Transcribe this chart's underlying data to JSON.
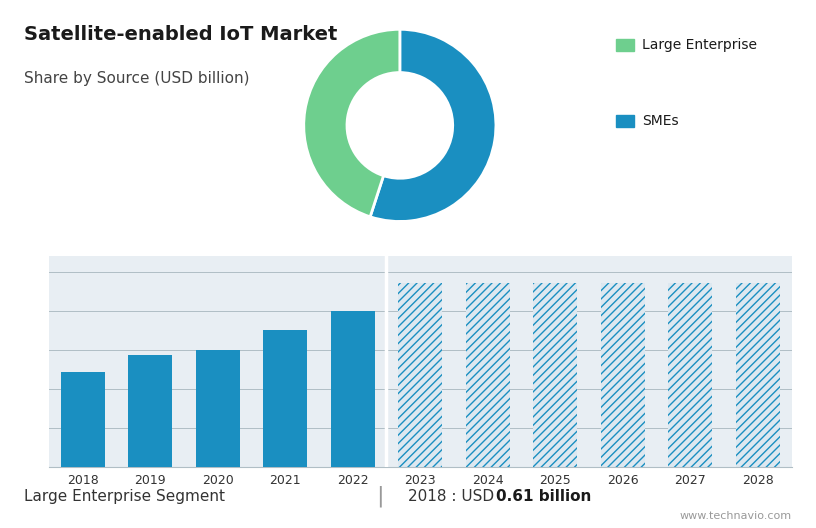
{
  "title": "Satellite-enabled IoT Market",
  "subtitle": "Share by Source (USD billion)",
  "top_bg_color": "#cdd8e3",
  "bottom_bg_color": "#e8eef3",
  "white_bg_color": "#ffffff",
  "bar_years": [
    "2018",
    "2019",
    "2020",
    "2021",
    "2022",
    "2023",
    "2024",
    "2025",
    "2026",
    "2027",
    "2028"
  ],
  "bar_values": [
    0.61,
    0.72,
    0.75,
    0.88,
    1.0,
    1.18,
    1.18,
    1.18,
    1.18,
    1.18,
    1.18
  ],
  "bar_solid_color": "#1a8fc1",
  "bar_hatch_color": "#1a8fc1",
  "bar_hatch_bg": "#dde8f0",
  "n_solid": 5,
  "donut_values": [
    55,
    45
  ],
  "donut_colors": [
    "#1a8fc1",
    "#6ecf8e"
  ],
  "legend_colors": [
    "#6ecf8e",
    "#1a8fc1"
  ],
  "legend_labels": [
    "Large Enterprise",
    "SMEs"
  ],
  "footer_left": "Large Enterprise Segment",
  "footer_right_prefix": "2018 : USD ",
  "footer_right_bold": "0.61 billion",
  "footer_divider": "|",
  "watermark": "www.technavio.com",
  "ylim": [
    0,
    1.35
  ],
  "yticks": [
    0.0,
    0.25,
    0.5,
    0.75,
    1.0,
    1.25
  ],
  "grid_color": "#b0bec5",
  "title_fontsize": 14,
  "subtitle_fontsize": 11
}
